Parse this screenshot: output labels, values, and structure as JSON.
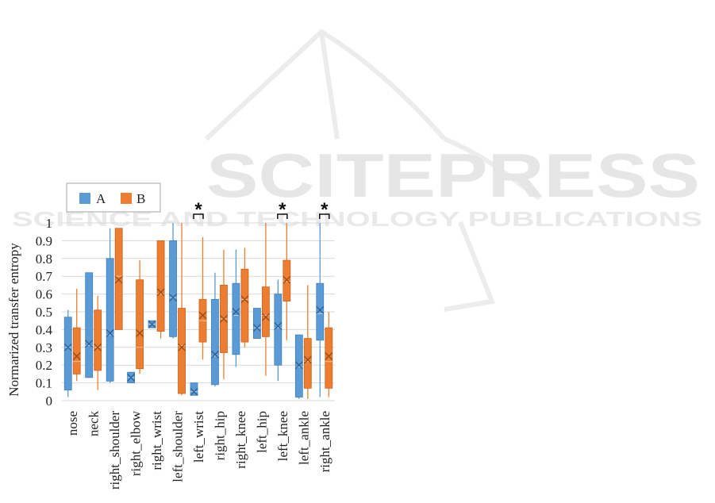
{
  "watermark": {
    "main": "SCITEPRESS",
    "sub": "SCIENCE AND TECHNOLOGY PUBLICATIONS"
  },
  "colors": {
    "A": "#5b9bd5",
    "A_stroke": "#3f7fbf",
    "B": "#ed7d31",
    "B_stroke": "#c8641e",
    "grid": "#d9d9d9",
    "watermark": "#e6e6e6"
  },
  "chart_data": {
    "type": "box",
    "title": "",
    "xlabel": "",
    "ylabel": "Normarized transfer entropy",
    "ylim": [
      0,
      1
    ],
    "yticks": [
      0,
      0.1,
      0.2,
      0.3,
      0.4,
      0.5,
      0.6,
      0.7,
      0.8,
      0.9,
      1
    ],
    "ytick_labels": [
      "0",
      "0.1",
      "0.2",
      "0.3",
      "0.4",
      "0.5",
      "0.6",
      "0.7",
      "0.8",
      "0.9",
      "1"
    ],
    "grid": true,
    "legend": {
      "placement": "top-left",
      "entries": [
        "A",
        "B"
      ]
    },
    "categories": [
      "nose",
      "neck",
      "right_shoulder",
      "right_elbow",
      "right_wrist",
      "left_shoulder",
      "left_wrist",
      "right_hip",
      "right_knee",
      "left_hip",
      "left_knee",
      "left_ankle",
      "right_ankle"
    ],
    "series": [
      {
        "name": "A",
        "boxes": [
          {
            "min": 0.02,
            "q1": 0.06,
            "median": 0.3,
            "q3": 0.47,
            "max": 0.51,
            "mean": 0.3
          },
          {
            "min": 0.13,
            "q1": 0.13,
            "median": 0.31,
            "q3": 0.72,
            "max": 0.72,
            "mean": 0.32
          },
          {
            "min": 0.1,
            "q1": 0.11,
            "median": 0.37,
            "q3": 0.8,
            "max": 0.97,
            "mean": 0.38
          },
          {
            "min": 0.1,
            "q1": 0.1,
            "median": 0.13,
            "q3": 0.16,
            "max": 0.16,
            "mean": 0.13
          },
          {
            "min": 0.41,
            "q1": 0.41,
            "median": 0.43,
            "q3": 0.45,
            "max": 0.45,
            "mean": 0.43
          },
          {
            "min": 0.35,
            "q1": 0.36,
            "median": 0.58,
            "q3": 0.9,
            "max": 1.0,
            "mean": 0.58
          },
          {
            "min": 0.03,
            "q1": 0.03,
            "median": 0.05,
            "q3": 0.1,
            "max": 0.1,
            "mean": 0.05
          },
          {
            "min": 0.08,
            "q1": 0.09,
            "median": 0.25,
            "q3": 0.57,
            "max": 0.72,
            "mean": 0.26
          },
          {
            "min": 0.19,
            "q1": 0.26,
            "median": 0.48,
            "q3": 0.66,
            "max": 0.85,
            "mean": 0.5
          },
          {
            "min": 0.35,
            "q1": 0.35,
            "median": 0.41,
            "q3": 0.52,
            "max": 0.52,
            "mean": 0.41
          },
          {
            "min": 0.11,
            "q1": 0.2,
            "median": 0.41,
            "q3": 0.6,
            "max": 0.68,
            "mean": 0.42
          },
          {
            "min": 0.01,
            "q1": 0.02,
            "median": 0.19,
            "q3": 0.37,
            "max": 0.37,
            "mean": 0.2
          },
          {
            "min": 0.02,
            "q1": 0.34,
            "median": 0.49,
            "q3": 0.66,
            "max": 1.0,
            "mean": 0.51
          }
        ]
      },
      {
        "name": "B",
        "boxes": [
          {
            "min": 0.11,
            "q1": 0.15,
            "median": 0.22,
            "q3": 0.41,
            "max": 0.63,
            "mean": 0.25
          },
          {
            "min": 0.06,
            "q1": 0.17,
            "median": 0.3,
            "q3": 0.51,
            "max": 0.59,
            "mean": 0.3
          },
          {
            "min": 0.4,
            "q1": 0.4,
            "median": 0.7,
            "q3": 0.97,
            "max": 0.97,
            "mean": 0.68
          },
          {
            "min": 0.15,
            "q1": 0.18,
            "median": 0.3,
            "q3": 0.68,
            "max": 0.79,
            "mean": 0.38
          },
          {
            "min": 0.35,
            "q1": 0.39,
            "median": 0.6,
            "q3": 0.9,
            "max": 0.9,
            "mean": 0.61
          },
          {
            "min": 0.03,
            "q1": 0.04,
            "median": 0.31,
            "q3": 0.52,
            "max": 1.0,
            "mean": 0.3
          },
          {
            "min": 0.23,
            "q1": 0.33,
            "median": 0.45,
            "q3": 0.57,
            "max": 0.92,
            "mean": 0.48
          },
          {
            "min": 0.12,
            "q1": 0.27,
            "median": 0.46,
            "q3": 0.65,
            "max": 0.85,
            "mean": 0.46
          },
          {
            "min": 0.3,
            "q1": 0.33,
            "median": 0.57,
            "q3": 0.74,
            "max": 0.86,
            "mean": 0.57
          },
          {
            "min": 0.14,
            "q1": 0.36,
            "median": 0.48,
            "q3": 0.64,
            "max": 1.0,
            "mean": 0.47
          },
          {
            "min": 0.34,
            "q1": 0.56,
            "median": 0.67,
            "q3": 0.79,
            "max": 1.0,
            "mean": 0.68
          },
          {
            "min": 0.01,
            "q1": 0.07,
            "median": 0.22,
            "q3": 0.35,
            "max": 0.65,
            "mean": 0.23
          },
          {
            "min": 0.02,
            "q1": 0.07,
            "median": 0.22,
            "q3": 0.41,
            "max": 0.5,
            "mean": 0.25
          }
        ]
      }
    ],
    "annotations": [
      {
        "category": "left_wrist",
        "text": "*"
      },
      {
        "category": "left_knee",
        "text": "*"
      },
      {
        "category": "right_ankle",
        "text": "*"
      }
    ]
  }
}
